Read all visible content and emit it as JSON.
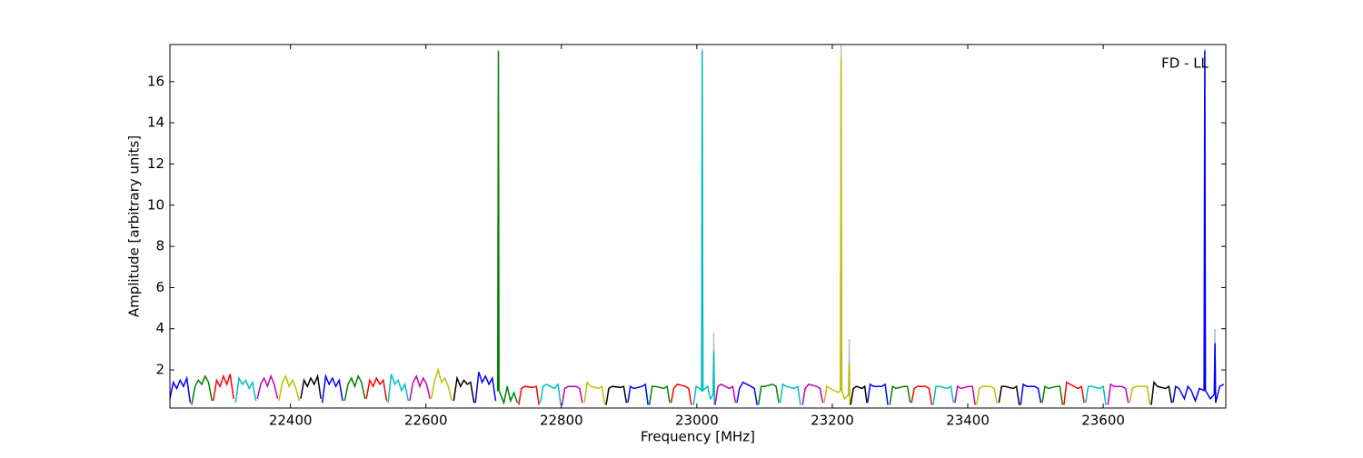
{
  "chart_data": {
    "type": "line",
    "annotation": "FD - LL",
    "xlabel": "Frequency [MHz]",
    "ylabel": "Amplitude [arbitrary units]",
    "xlim": [
      22222,
      23781
    ],
    "ylim": [
      0.15,
      17.8
    ],
    "xticks": [
      22400,
      22600,
      22800,
      23000,
      23200,
      23400,
      23600
    ],
    "yticks": [
      2,
      4,
      6,
      8,
      10,
      12,
      14,
      16
    ],
    "series": [
      {
        "color": "#bfbfbf",
        "x": [
          23007,
          23008,
          23009,
          23016,
          23024,
          23025,
          23026,
          23100,
          23212,
          23213,
          23214,
          23220,
          23224,
          23225,
          23226,
          23500,
          23749,
          23750,
          23751,
          23758,
          23764,
          23765,
          23766
        ],
        "values": [
          1.0,
          17.6,
          1.0,
          null,
          0.8,
          3.8,
          0.8,
          null,
          1.0,
          17.8,
          1.0,
          null,
          0.8,
          3.5,
          0.8,
          null,
          1.0,
          17.6,
          1.0,
          null,
          0.8,
          4.0,
          0.8
        ]
      },
      {
        "color": "#0000ff",
        "x": [
          22222,
          22227,
          22232,
          22237,
          22242,
          22247,
          22252
        ],
        "values": [
          0.6,
          1.4,
          1.1,
          1.5,
          1.2,
          1.6,
          0.4
        ]
      },
      {
        "color": "#008000",
        "x": [
          22254,
          22259,
          22264,
          22269,
          22274,
          22279,
          22284
        ],
        "values": [
          0.3,
          1.2,
          1.5,
          1.3,
          1.7,
          1.4,
          0.5
        ]
      },
      {
        "color": "#ff0000",
        "x": [
          22286,
          22291,
          22296,
          22301,
          22306,
          22311,
          22316
        ],
        "values": [
          0.5,
          1.5,
          1.2,
          1.7,
          1.3,
          1.8,
          0.6
        ]
      },
      {
        "color": "#00bfbf",
        "x": [
          22319,
          22324,
          22329,
          22334,
          22339,
          22344,
          22349
        ],
        "values": [
          0.4,
          1.6,
          1.3,
          1.5,
          1.1,
          1.4,
          0.5
        ]
      },
      {
        "color": "#bf00bf",
        "x": [
          22351,
          22356,
          22361,
          22366,
          22371,
          22376,
          22381
        ],
        "values": [
          0.6,
          1.3,
          1.6,
          1.2,
          1.7,
          1.3,
          0.6
        ]
      },
      {
        "color": "#bfbf00",
        "x": [
          22383,
          22388,
          22393,
          22398,
          22403,
          22408,
          22413
        ],
        "values": [
          0.5,
          1.4,
          1.7,
          1.2,
          1.5,
          1.1,
          0.5
        ]
      },
      {
        "color": "#000000",
        "x": [
          22415,
          22420,
          22425,
          22430,
          22435,
          22440,
          22445
        ],
        "values": [
          0.6,
          1.5,
          1.2,
          1.6,
          1.3,
          1.7,
          0.6
        ]
      },
      {
        "color": "#0000ff",
        "x": [
          22447,
          22452,
          22457,
          22462,
          22467,
          22472,
          22477
        ],
        "values": [
          0.4,
          1.7,
          1.3,
          1.6,
          1.2,
          1.5,
          0.5
        ]
      },
      {
        "color": "#008000",
        "x": [
          22480,
          22485,
          22490,
          22495,
          22500,
          22505,
          22510
        ],
        "values": [
          0.5,
          1.3,
          1.6,
          1.2,
          1.7,
          1.4,
          0.6
        ]
      },
      {
        "color": "#ff0000",
        "x": [
          22512,
          22517,
          22522,
          22527,
          22532,
          22537,
          22542
        ],
        "values": [
          0.6,
          1.5,
          1.2,
          1.6,
          1.3,
          1.5,
          0.5
        ]
      },
      {
        "color": "#00bfbf",
        "x": [
          22544,
          22549,
          22554,
          22559,
          22564,
          22569,
          22574
        ],
        "values": [
          0.4,
          1.8,
          1.3,
          1.5,
          1.0,
          1.3,
          0.5
        ]
      },
      {
        "color": "#bf00bf",
        "x": [
          22576,
          22581,
          22586,
          22591,
          22596,
          22601,
          22606
        ],
        "values": [
          0.5,
          1.4,
          1.7,
          1.2,
          1.6,
          1.3,
          0.6
        ]
      },
      {
        "color": "#bfbf00",
        "x": [
          22608,
          22613,
          22618,
          22623,
          22628,
          22633,
          22638
        ],
        "values": [
          0.6,
          1.5,
          2.0,
          1.4,
          1.6,
          1.2,
          0.5
        ]
      },
      {
        "color": "#000000",
        "x": [
          22641,
          22646,
          22651,
          22656,
          22661,
          22666,
          22671
        ],
        "values": [
          0.5,
          1.6,
          1.2,
          1.5,
          1.3,
          1.4,
          0.4
        ]
      },
      {
        "color": "#0000ff",
        "x": [
          22673,
          22678,
          22683,
          22688,
          22693,
          22698,
          22703
        ],
        "values": [
          0.4,
          1.9,
          1.4,
          1.7,
          1.3,
          1.6,
          0.5
        ]
      },
      {
        "color": "#008000",
        "x": [
          22705,
          22706,
          22707,
          22708,
          22715,
          22720,
          22725,
          22730,
          22735
        ],
        "values": [
          1.0,
          1.0,
          17.5,
          1.0,
          0.4,
          1.2,
          0.5,
          0.9,
          0.4
        ]
      },
      {
        "color": "#ff0000",
        "x": [
          22737,
          22741,
          22746,
          22758,
          22763,
          22767
        ],
        "values": [
          0.3,
          1.1,
          1.2,
          1.15,
          1.2,
          0.3
        ]
      },
      {
        "color": "#00bfbf",
        "x": [
          22769,
          22773,
          22778,
          22790,
          22795,
          22799
        ],
        "values": [
          0.4,
          1.2,
          1.3,
          1.1,
          1.3,
          0.3
        ]
      },
      {
        "color": "#bf00bf",
        "x": [
          22801,
          22805,
          22810,
          22822,
          22827,
          22831
        ],
        "values": [
          0.3,
          1.1,
          1.2,
          1.2,
          1.1,
          0.4
        ]
      },
      {
        "color": "#bfbf00",
        "x": [
          22834,
          22838,
          22843,
          22855,
          22860,
          22864
        ],
        "values": [
          0.4,
          1.4,
          1.2,
          1.1,
          1.2,
          0.3
        ]
      },
      {
        "color": "#000000",
        "x": [
          22866,
          22870,
          22875,
          22887,
          22892,
          22896
        ],
        "values": [
          0.3,
          1.1,
          1.2,
          1.15,
          1.2,
          0.4
        ]
      },
      {
        "color": "#0000ff",
        "x": [
          22898,
          22902,
          22907,
          22919,
          22924,
          22928
        ],
        "values": [
          0.4,
          1.2,
          1.1,
          1.2,
          1.3,
          0.3
        ]
      },
      {
        "color": "#008000",
        "x": [
          22930,
          22934,
          22939,
          22951,
          22956,
          22960
        ],
        "values": [
          0.3,
          1.2,
          1.2,
          1.1,
          1.2,
          0.4
        ]
      },
      {
        "color": "#ff0000",
        "x": [
          22962,
          22966,
          22971,
          22983,
          22988,
          22992
        ],
        "values": [
          0.4,
          1.1,
          1.3,
          1.2,
          1.1,
          0.3
        ]
      },
      {
        "color": "#00bfbf",
        "x": [
          22995,
          22999,
          23004,
          23007,
          23008,
          23009,
          23016,
          23020,
          23024,
          23025,
          23026
        ],
        "values": [
          0.3,
          1.2,
          1.1,
          1.0,
          17.5,
          1.0,
          1.2,
          0.6,
          0.8,
          2.9,
          0.3
        ]
      },
      {
        "color": "#bf00bf",
        "x": [
          23027,
          23031,
          23036,
          23048,
          23053,
          23057
        ],
        "values": [
          0.3,
          1.2,
          1.3,
          1.1,
          1.2,
          0.4
        ]
      },
      {
        "color": "#0000ff",
        "x": [
          23059,
          23063,
          23068,
          23080,
          23085,
          23089
        ],
        "values": [
          0.4,
          1.1,
          1.4,
          1.2,
          1.1,
          0.3
        ]
      },
      {
        "color": "#008000",
        "x": [
          23091,
          23095,
          23100,
          23112,
          23117,
          23121
        ],
        "values": [
          0.3,
          1.2,
          1.2,
          1.3,
          1.2,
          0.4
        ]
      },
      {
        "color": "#00bfbf",
        "x": [
          23123,
          23127,
          23132,
          23144,
          23149,
          23153
        ],
        "values": [
          0.4,
          1.3,
          1.2,
          1.1,
          1.2,
          0.3
        ]
      },
      {
        "color": "#bf00bf",
        "x": [
          23156,
          23160,
          23165,
          23177,
          23182,
          23186
        ],
        "values": [
          0.3,
          1.1,
          1.3,
          1.2,
          1.1,
          0.4
        ]
      },
      {
        "color": "#bfbf00",
        "x": [
          23188,
          23192,
          23197,
          23209,
          23212,
          23213,
          23214,
          23218,
          23224,
          23225,
          23226
        ],
        "values": [
          0.4,
          1.2,
          1.1,
          0.9,
          1.0,
          17.2,
          1.0,
          0.6,
          0.8,
          2.3,
          0.3
        ]
      },
      {
        "color": "#000000",
        "x": [
          23227,
          23231,
          23236,
          23244,
          23248,
          23251
        ],
        "values": [
          0.3,
          1.1,
          1.2,
          1.1,
          1.2,
          0.4
        ]
      },
      {
        "color": "#0000ff",
        "x": [
          23252,
          23256,
          23261,
          23273,
          23278,
          23282
        ],
        "values": [
          0.4,
          1.3,
          1.2,
          1.2,
          1.3,
          0.3
        ]
      },
      {
        "color": "#008000",
        "x": [
          23285,
          23289,
          23294,
          23306,
          23311,
          23315
        ],
        "values": [
          0.3,
          1.2,
          1.1,
          1.2,
          1.2,
          0.4
        ]
      },
      {
        "color": "#ff0000",
        "x": [
          23317,
          23321,
          23326,
          23338,
          23343,
          23347
        ],
        "values": [
          0.4,
          1.1,
          1.2,
          1.2,
          1.1,
          0.3
        ]
      },
      {
        "color": "#00bfbf",
        "x": [
          23349,
          23353,
          23358,
          23370,
          23375,
          23379
        ],
        "values": [
          0.3,
          1.2,
          1.2,
          1.1,
          1.2,
          0.4
        ]
      },
      {
        "color": "#bf00bf",
        "x": [
          23381,
          23385,
          23390,
          23402,
          23407,
          23411
        ],
        "values": [
          0.4,
          1.2,
          1.1,
          1.2,
          1.2,
          0.3
        ]
      },
      {
        "color": "#bfbf00",
        "x": [
          23413,
          23417,
          23422,
          23434,
          23439,
          23443
        ],
        "values": [
          0.3,
          1.1,
          1.2,
          1.2,
          1.1,
          0.4
        ]
      },
      {
        "color": "#000000",
        "x": [
          23446,
          23450,
          23455,
          23467,
          23472,
          23476
        ],
        "values": [
          0.4,
          1.2,
          1.2,
          1.1,
          1.2,
          0.3
        ]
      },
      {
        "color": "#0000ff",
        "x": [
          23478,
          23482,
          23487,
          23499,
          23504,
          23508
        ],
        "values": [
          0.3,
          1.3,
          1.2,
          1.2,
          1.1,
          0.4
        ]
      },
      {
        "color": "#008000",
        "x": [
          23510,
          23514,
          23519,
          23531,
          23536,
          23540
        ],
        "values": [
          0.4,
          1.2,
          1.1,
          1.2,
          1.2,
          0.3
        ]
      },
      {
        "color": "#ff0000",
        "x": [
          23542,
          23546,
          23551,
          23563,
          23568,
          23572
        ],
        "values": [
          0.3,
          1.4,
          1.3,
          1.1,
          1.2,
          0.4
        ]
      },
      {
        "color": "#00bfbf",
        "x": [
          23574,
          23578,
          23583,
          23595,
          23600,
          23604
        ],
        "values": [
          0.4,
          1.2,
          1.2,
          1.1,
          1.2,
          0.3
        ]
      },
      {
        "color": "#bf00bf",
        "x": [
          23607,
          23611,
          23616,
          23628,
          23633,
          23637
        ],
        "values": [
          0.3,
          1.3,
          1.2,
          1.2,
          1.1,
          0.4
        ]
      },
      {
        "color": "#bfbf00",
        "x": [
          23639,
          23643,
          23648,
          23660,
          23665,
          23669
        ],
        "values": [
          0.4,
          1.1,
          1.2,
          1.2,
          1.2,
          0.3
        ]
      },
      {
        "color": "#000000",
        "x": [
          23671,
          23675,
          23680,
          23692,
          23697,
          23701
        ],
        "values": [
          0.3,
          1.4,
          1.2,
          1.1,
          1.2,
          0.4
        ]
      },
      {
        "color": "#0000ff",
        "x": [
          23703,
          23707,
          23712,
          23720,
          23725,
          23730,
          23736,
          23742,
          23749,
          23750,
          23751,
          23758,
          23764,
          23765,
          23766,
          23772,
          23778
        ],
        "values": [
          0.4,
          1.2,
          1.1,
          0.6,
          1.2,
          1.0,
          0.5,
          1.1,
          1.0,
          17.5,
          1.0,
          0.6,
          0.8,
          3.3,
          0.4,
          1.2,
          1.3
        ]
      }
    ]
  }
}
